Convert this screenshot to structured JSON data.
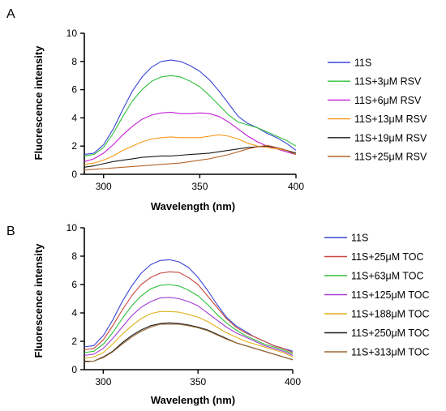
{
  "chart_data": [
    {
      "panel_label": "A",
      "type": "line",
      "xlabel": "Wavelength (nm)",
      "ylabel": "Fluorescence intensity",
      "xlim": [
        290,
        400
      ],
      "ylim": [
        0,
        10
      ],
      "xticks": [
        300,
        350,
        400
      ],
      "yticks": [
        0,
        2,
        4,
        6,
        8,
        10
      ],
      "grid": false,
      "legend_position": "right",
      "x": [
        290,
        295,
        300,
        305,
        310,
        315,
        320,
        325,
        330,
        335,
        340,
        345,
        350,
        355,
        360,
        365,
        370,
        375,
        380,
        385,
        390,
        395,
        400
      ],
      "series": [
        {
          "name": "11S",
          "color": "#3a44d6",
          "values": [
            1.4,
            1.5,
            2.1,
            3.2,
            4.6,
            5.9,
            6.9,
            7.6,
            8.0,
            8.1,
            8.0,
            7.7,
            7.3,
            6.7,
            5.9,
            5.0,
            4.1,
            3.6,
            3.3,
            2.9,
            2.6,
            2.2,
            1.7
          ]
        },
        {
          "name": "11S+3μM RSV",
          "color": "#2fbf3a",
          "values": [
            1.3,
            1.4,
            1.9,
            2.9,
            4.1,
            5.2,
            6.0,
            6.6,
            6.9,
            7.0,
            6.9,
            6.6,
            6.2,
            5.6,
            4.9,
            4.2,
            3.7,
            3.5,
            3.3,
            3.0,
            2.7,
            2.4,
            2.0
          ]
        },
        {
          "name": "11S+6μM RSV",
          "color": "#c21ed6",
          "values": [
            0.9,
            1.1,
            1.5,
            2.1,
            2.8,
            3.4,
            3.9,
            4.2,
            4.35,
            4.4,
            4.3,
            4.3,
            4.35,
            4.3,
            4.1,
            3.7,
            3.2,
            2.7,
            2.3,
            2.0,
            1.8,
            1.6,
            1.4
          ]
        },
        {
          "name": "11S+13μM RSV",
          "color": "#f59a1a",
          "values": [
            0.7,
            0.8,
            1.0,
            1.3,
            1.7,
            2.0,
            2.3,
            2.5,
            2.6,
            2.65,
            2.6,
            2.6,
            2.6,
            2.7,
            2.8,
            2.7,
            2.5,
            2.2,
            2.0,
            1.9,
            1.8,
            1.7,
            1.5
          ]
        },
        {
          "name": "11S+19μM RSV",
          "color": "#1a1a1a",
          "values": [
            0.5,
            0.6,
            0.75,
            0.9,
            1.0,
            1.1,
            1.2,
            1.25,
            1.3,
            1.3,
            1.35,
            1.4,
            1.45,
            1.5,
            1.6,
            1.7,
            1.8,
            1.9,
            1.95,
            2.0,
            1.9,
            1.7,
            1.5
          ]
        },
        {
          "name": "11S+25μM RSV",
          "color": "#b5652a",
          "values": [
            0.3,
            0.35,
            0.4,
            0.45,
            0.5,
            0.55,
            0.6,
            0.65,
            0.7,
            0.75,
            0.8,
            0.9,
            1.0,
            1.1,
            1.25,
            1.4,
            1.6,
            1.8,
            1.95,
            2.05,
            1.9,
            1.7,
            1.4
          ]
        }
      ]
    },
    {
      "panel_label": "B",
      "type": "line",
      "xlabel": "Wavelength (nm)",
      "ylabel": "Fluorescence intensity",
      "xlim": [
        290,
        400
      ],
      "ylim": [
        0,
        10
      ],
      "xticks": [
        300,
        350,
        400
      ],
      "yticks": [
        0,
        2,
        4,
        6,
        8,
        10
      ],
      "grid": false,
      "legend_position": "right",
      "x": [
        290,
        295,
        300,
        305,
        310,
        315,
        320,
        325,
        330,
        335,
        340,
        345,
        350,
        355,
        360,
        365,
        370,
        375,
        380,
        385,
        390,
        395,
        400
      ],
      "series": [
        {
          "name": "11S",
          "color": "#3a44d6",
          "values": [
            1.6,
            1.7,
            2.4,
            3.5,
            4.8,
            5.9,
            6.8,
            7.4,
            7.7,
            7.75,
            7.6,
            7.2,
            6.5,
            5.6,
            4.6,
            3.7,
            3.1,
            2.7,
            2.3,
            2.0,
            1.7,
            1.5,
            1.3
          ]
        },
        {
          "name": "11S+25μM TOC",
          "color": "#c8473a",
          "values": [
            1.4,
            1.5,
            2.1,
            3.1,
            4.2,
            5.2,
            6.0,
            6.5,
            6.8,
            6.9,
            6.85,
            6.5,
            6.0,
            5.2,
            4.4,
            3.6,
            3.0,
            2.6,
            2.3,
            2.0,
            1.7,
            1.5,
            1.2
          ]
        },
        {
          "name": "11S+63μM TOC",
          "color": "#2fbf3a",
          "values": [
            1.2,
            1.3,
            1.8,
            2.6,
            3.6,
            4.5,
            5.2,
            5.7,
            5.95,
            6.0,
            5.9,
            5.6,
            5.2,
            4.6,
            3.9,
            3.3,
            2.8,
            2.4,
            2.1,
            1.8,
            1.6,
            1.4,
            1.1
          ]
        },
        {
          "name": "11S+125μM TOC",
          "color": "#a23cd6",
          "values": [
            1.0,
            1.1,
            1.5,
            2.2,
            3.0,
            3.8,
            4.4,
            4.8,
            5.05,
            5.1,
            5.0,
            4.8,
            4.5,
            4.0,
            3.5,
            3.0,
            2.6,
            2.3,
            2.0,
            1.7,
            1.5,
            1.3,
            1.0
          ]
        },
        {
          "name": "11S+188μM TOC",
          "color": "#e0b21a",
          "values": [
            0.8,
            0.9,
            1.2,
            1.8,
            2.5,
            3.1,
            3.6,
            3.95,
            4.1,
            4.1,
            4.05,
            3.9,
            3.7,
            3.4,
            3.0,
            2.6,
            2.3,
            2.0,
            1.8,
            1.6,
            1.4,
            1.2,
            0.9
          ]
        },
        {
          "name": "11S+250μM TOC",
          "color": "#1a1a1a",
          "values": [
            0.6,
            0.6,
            0.9,
            1.3,
            1.9,
            2.4,
            2.8,
            3.1,
            3.25,
            3.3,
            3.25,
            3.15,
            3.0,
            2.8,
            2.5,
            2.2,
            1.9,
            1.7,
            1.5,
            1.3,
            1.1,
            0.9,
            0.7
          ]
        },
        {
          "name": "11S+313μM TOC",
          "color": "#9a6a35",
          "values": [
            0.55,
            0.6,
            0.85,
            1.25,
            1.8,
            2.3,
            2.7,
            3.0,
            3.2,
            3.2,
            3.2,
            3.1,
            2.95,
            2.75,
            2.45,
            2.15,
            1.9,
            1.7,
            1.5,
            1.3,
            1.1,
            0.9,
            0.7
          ]
        }
      ]
    }
  ]
}
